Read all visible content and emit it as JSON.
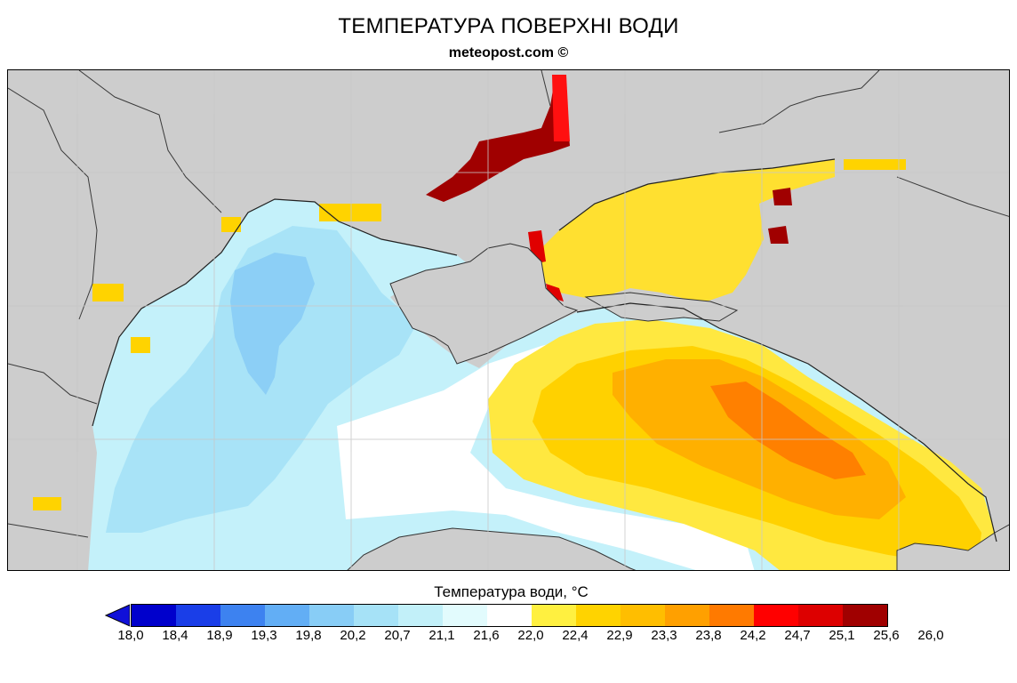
{
  "header": {
    "title": "ТЕМПЕРАТУРА ПОВЕРХНІ ВОДИ",
    "source": "meteopost.com ©"
  },
  "map": {
    "land_color": "#cdcdcd",
    "border_color": "#3a3a3a",
    "grid_color": "#c8c8c8"
  },
  "legend": {
    "title": "Температура води, °C",
    "lower_arrow_color": "#1010d8",
    "colors": [
      "#0000cc",
      "#1a3ee8",
      "#3d82f0",
      "#62aef5",
      "#88cdf6",
      "#a6e2f7",
      "#c2f0f9",
      "#e2fbfd",
      "#ffffff",
      "#fff040",
      "#ffd300",
      "#ffbe00",
      "#ffa000",
      "#ff7a00",
      "#ff0000",
      "#dd0000",
      "#a00000"
    ],
    "ticks": [
      "18,0",
      "18,4",
      "18,9",
      "19,3",
      "19,8",
      "20,2",
      "20,7",
      "21,1",
      "21,6",
      "22,0",
      "22,4",
      "22,9",
      "23,3",
      "23,8",
      "24,2",
      "24,7",
      "25,1",
      "25,6",
      "26,0"
    ]
  }
}
